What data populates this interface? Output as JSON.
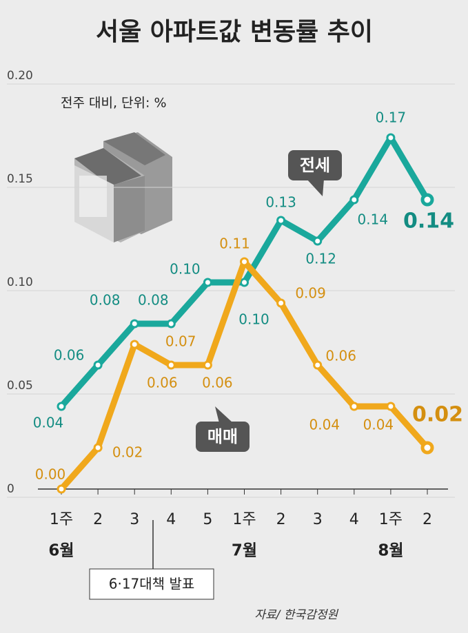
{
  "chart_data": {
    "type": "line",
    "title": "서울 아파트값 변동률 추이",
    "subtitle": "전주 대비, 단위: %",
    "categories": [
      "1주",
      "2",
      "3",
      "4",
      "5",
      "1주",
      "2",
      "3",
      "4",
      "1주",
      "2"
    ],
    "months": [
      "6월",
      null,
      null,
      null,
      null,
      "7월",
      null,
      null,
      null,
      "8월",
      null
    ],
    "series": [
      {
        "name": "전세",
        "color": "#1aa89c",
        "values": [
          0.04,
          0.06,
          0.08,
          0.08,
          0.1,
          0.1,
          0.13,
          0.12,
          0.14,
          0.17,
          0.14
        ],
        "value_labels": [
          "0.04",
          "0.06",
          "0.08",
          "0.08",
          "0.10",
          "0.10",
          "0.13",
          "0.12",
          "0.14",
          "0.17",
          "0.14"
        ]
      },
      {
        "name": "매매",
        "color": "#f0a81c",
        "values": [
          0.0,
          0.02,
          0.07,
          0.06,
          0.06,
          0.11,
          0.09,
          0.06,
          0.04,
          0.04,
          0.02
        ],
        "value_labels": [
          "0.00",
          "0.02",
          "0.07",
          "0.06",
          "0.06",
          "0.11",
          "0.09",
          "0.06",
          "0.04",
          "0.04",
          "0.02"
        ]
      }
    ],
    "ylim": [
      0,
      0.2
    ],
    "yticks": [
      0,
      0.05,
      {
        "value": 0.1,
        "label": "0.10"
      },
      0.15,
      {
        "value": 0.2,
        "label": "0.20"
      }
    ],
    "grid": true,
    "annotation": "6·17대책 발표",
    "source": "자료/ 한국감정원"
  }
}
